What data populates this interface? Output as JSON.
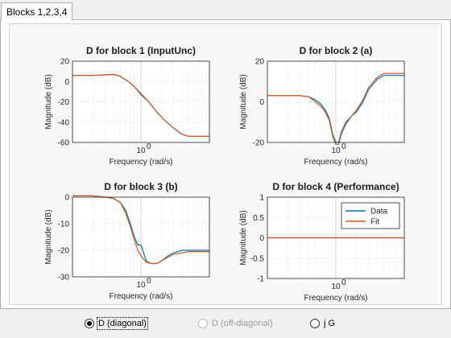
{
  "tab": {
    "label": "Blocks 1,2,3,4"
  },
  "colors": {
    "data": "#0072bd",
    "fit": "#d95319"
  },
  "plots": [
    {
      "title": "D for block 1 (InputUnc)",
      "xlabel": "Frequency  (rad/s)",
      "ylabel": "Magnitude (dB)",
      "ylim": [
        -60,
        20
      ],
      "yticks": [
        "20",
        "0",
        "-20",
        "-40",
        "-60"
      ],
      "xtick": "10",
      "xtick_exp": "0"
    },
    {
      "title": "D for block 2 (a)",
      "xlabel": "Frequency  (rad/s)",
      "ylabel": "Magnitude (dB)",
      "ylim": [
        -20,
        20
      ],
      "yticks": [
        "20",
        "0",
        "-20"
      ],
      "xtick": "10",
      "xtick_exp": "0"
    },
    {
      "title": "D for block 3 (b)",
      "xlabel": "Frequency  (rad/s)",
      "ylabel": "Magnitude (dB)",
      "ylim": [
        -30,
        0
      ],
      "yticks": [
        "0",
        "-10",
        "-20",
        "-30"
      ],
      "xtick": "10",
      "xtick_exp": "0"
    },
    {
      "title": "D for block 4 (Performance)",
      "xlabel": "Frequency  (rad/s)",
      "ylabel": "Magnitude (dB)",
      "ylim": [
        -1,
        1
      ],
      "yticks": [
        "1",
        "0.5",
        "0",
        "-0.5",
        "-1"
      ],
      "xtick": "10",
      "xtick_exp": "0",
      "legend": [
        "Data",
        "Fit"
      ]
    }
  ],
  "chart_data": [
    {
      "type": "line",
      "title": "D for block 1 (InputUnc)",
      "xlabel": "Frequency  (rad/s)",
      "ylabel": "Magnitude (dB)",
      "xscale": "log",
      "xlim": [
        0.1,
        10
      ],
      "ylim": [
        -60,
        20
      ],
      "grid": true,
      "series": [
        {
          "x": [
            0.1,
            0.2,
            0.3,
            0.4,
            0.5,
            0.65,
            0.8,
            1.0,
            1.3,
            1.7,
            2.2,
            3.0,
            4.0,
            5.0,
            7.0,
            10.0
          ],
          "y": [
            6,
            6,
            6.5,
            7,
            5,
            0,
            -5,
            -12,
            -20,
            -30,
            -38,
            -46,
            -52,
            -54,
            -54,
            -54
          ]
        },
        {
          "x": [
            0.1,
            0.2,
            0.3,
            0.4,
            0.5,
            0.65,
            0.8,
            1.0,
            1.3,
            1.7,
            2.2,
            3.0,
            4.0,
            5.0,
            7.0,
            10.0
          ],
          "y": [
            6,
            6,
            6.5,
            7,
            5,
            0,
            -5,
            -13,
            -20,
            -30,
            -38,
            -46,
            -52,
            -54,
            -54,
            -54
          ]
        }
      ]
    },
    {
      "type": "line",
      "title": "D for block 2 (a)",
      "xlabel": "Frequency  (rad/s)",
      "ylabel": "Magnitude (dB)",
      "xscale": "log",
      "xlim": [
        0.1,
        10
      ],
      "ylim": [
        -20,
        20
      ],
      "grid": true,
      "series": [
        {
          "x": [
            0.1,
            0.2,
            0.3,
            0.4,
            0.5,
            0.6,
            0.7,
            0.8,
            0.9,
            1.0,
            1.1,
            1.2,
            1.4,
            1.7,
            2.0,
            2.5,
            3.0,
            4.0,
            5.0,
            7.0,
            10.0
          ],
          "y": [
            3,
            3,
            3,
            2.5,
            1,
            -1,
            -4,
            -8,
            -16,
            -20,
            -20,
            -15,
            -10,
            -7,
            -5,
            0,
            6,
            11,
            13,
            13,
            13
          ]
        },
        {
          "x": [
            0.1,
            0.2,
            0.3,
            0.4,
            0.5,
            0.6,
            0.7,
            0.8,
            0.9,
            1.0,
            1.1,
            1.2,
            1.4,
            1.7,
            2.0,
            2.5,
            3.0,
            4.0,
            5.0,
            7.0,
            10.0
          ],
          "y": [
            3,
            3,
            3,
            2.5,
            0,
            -2,
            -5,
            -9,
            -17,
            -21,
            -21,
            -16,
            -11,
            -7,
            -4,
            1,
            7,
            12,
            14,
            14,
            14
          ]
        }
      ]
    },
    {
      "type": "line",
      "title": "D for block 3 (b)",
      "xlabel": "Frequency  (rad/s)",
      "ylabel": "Magnitude (dB)",
      "xscale": "log",
      "xlim": [
        0.1,
        10
      ],
      "ylim": [
        -30,
        0
      ],
      "grid": true,
      "series": [
        {
          "x": [
            0.1,
            0.2,
            0.3,
            0.4,
            0.5,
            0.6,
            0.7,
            0.8,
            0.9,
            1.0,
            1.2,
            1.4,
            1.7,
            2.0,
            2.5,
            3.0,
            4.0,
            5.0,
            7.0,
            10.0
          ],
          "y": [
            0.5,
            0.5,
            0,
            -0.5,
            -2,
            -5,
            -10,
            -15,
            -18,
            -18,
            -24,
            -25,
            -25,
            -24,
            -22,
            -21,
            -20,
            -20,
            -20,
            -20
          ]
        },
        {
          "x": [
            0.1,
            0.2,
            0.3,
            0.4,
            0.5,
            0.6,
            0.7,
            0.8,
            0.9,
            1.0,
            1.2,
            1.4,
            1.7,
            2.0,
            2.5,
            3.0,
            4.0,
            5.0,
            7.0,
            10.0
          ],
          "y": [
            0.5,
            0.5,
            0,
            -0.5,
            -2,
            -6,
            -11,
            -16,
            -20,
            -22,
            -24.5,
            -25,
            -25,
            -24,
            -22.5,
            -21.5,
            -21,
            -20.5,
            -20.5,
            -20.5
          ]
        }
      ]
    },
    {
      "type": "line",
      "title": "D for block 4 (Performance)",
      "xlabel": "Frequency  (rad/s)",
      "ylabel": "Magnitude (dB)",
      "xscale": "log",
      "xlim": [
        0.1,
        10
      ],
      "ylim": [
        -1,
        1
      ],
      "grid": true,
      "legend_position": "top-right",
      "series": [
        {
          "name": "Data",
          "x": [
            0.1,
            10.0
          ],
          "y": [
            0,
            0
          ]
        },
        {
          "name": "Fit",
          "x": [
            0.1,
            10.0
          ],
          "y": [
            0,
            0
          ]
        }
      ]
    }
  ],
  "radios": [
    {
      "label": "D (diagonal)",
      "checked": true,
      "enabled": true
    },
    {
      "label": "D (off-diagonal)",
      "checked": false,
      "enabled": false
    },
    {
      "label": "j G",
      "checked": false,
      "enabled": true
    }
  ]
}
